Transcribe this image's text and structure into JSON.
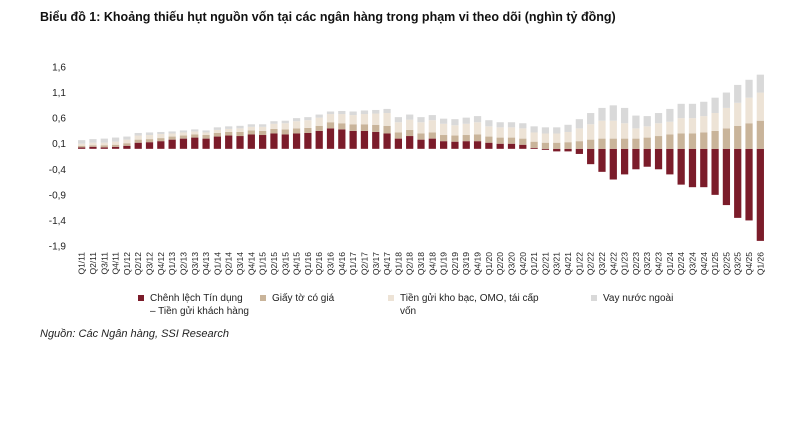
{
  "chart_data": {
    "type": "stacked-bar",
    "title": "Biểu đồ 1: Khoảng thiếu hụt nguồn vốn tại các ngân hàng trong phạm vi theo dõi (nghìn tỷ đồng)",
    "source": "Nguồn: Các Ngân hàng, SSI Research",
    "categories": [
      "Q1/11",
      "Q2/11",
      "Q3/11",
      "Q4/11",
      "Q1/12",
      "Q2/12",
      "Q3/12",
      "Q4/12",
      "Q1/13",
      "Q2/13",
      "Q3/13",
      "Q4/13",
      "Q1/14",
      "Q2/14",
      "Q3/14",
      "Q4/14",
      "Q1/15",
      "Q2/15",
      "Q3/15",
      "Q4/15",
      "Q1/16",
      "Q2/16",
      "Q3/16",
      "Q4/16",
      "Q1/17",
      "Q2/17",
      "Q3/17",
      "Q4/17",
      "Q1/18",
      "Q2/18",
      "Q3/18",
      "Q4/18",
      "Q1/19",
      "Q2/19",
      "Q3/19",
      "Q4/19",
      "Q1/20",
      "Q2/20",
      "Q3/20",
      "Q4/20",
      "Q1/21",
      "Q2/21",
      "Q3/21",
      "Q4/21",
      "Q1/22",
      "Q2/22",
      "Q3/22",
      "Q4/22",
      "Q1/23",
      "Q2/23",
      "Q3/23",
      "Q4/23",
      "Q1/24",
      "Q2/24",
      "Q3/24",
      "Q4/24",
      "Q1/25",
      "Q2/25",
      "Q3/25",
      "Q4/25",
      "Q1/26"
    ],
    "series": [
      {
        "name": "Chênh lệch Tín dụng – Tiền gửi khách hàng",
        "color": "#7b1c2a",
        "values": [
          0.03,
          0.04,
          0.03,
          0.04,
          0.06,
          0.12,
          0.13,
          0.15,
          0.18,
          0.2,
          0.22,
          0.2,
          0.24,
          0.26,
          0.25,
          0.28,
          0.27,
          0.3,
          0.28,
          0.3,
          0.31,
          0.35,
          0.4,
          0.38,
          0.35,
          0.35,
          0.33,
          0.3,
          0.2,
          0.25,
          0.18,
          0.2,
          0.15,
          0.14,
          0.15,
          0.15,
          0.12,
          0.1,
          0.1,
          0.08,
          0.02,
          -0.02,
          -0.05,
          -0.05,
          -0.1,
          -0.3,
          -0.45,
          -0.6,
          -0.5,
          -0.4,
          -0.35,
          -0.4,
          -0.5,
          -0.7,
          -0.75,
          -0.75,
          -0.9,
          -1.1,
          -1.35,
          -1.4,
          -1.8
        ]
      },
      {
        "name": "Giấy tờ có giá",
        "color": "#c9b49a",
        "values": [
          0.03,
          0.03,
          0.04,
          0.04,
          0.05,
          0.06,
          0.06,
          0.06,
          0.06,
          0.06,
          0.06,
          0.07,
          0.07,
          0.07,
          0.08,
          0.08,
          0.08,
          0.09,
          0.1,
          0.1,
          0.1,
          0.1,
          0.12,
          0.12,
          0.13,
          0.13,
          0.14,
          0.15,
          0.12,
          0.12,
          0.12,
          0.12,
          0.12,
          0.12,
          0.12,
          0.13,
          0.12,
          0.12,
          0.12,
          0.12,
          0.12,
          0.12,
          0.12,
          0.13,
          0.15,
          0.18,
          0.2,
          0.2,
          0.2,
          0.2,
          0.22,
          0.25,
          0.28,
          0.3,
          0.3,
          0.32,
          0.35,
          0.4,
          0.45,
          0.5,
          0.55
        ]
      },
      {
        "name": "Tiền gửi kho bạc, OMO, tái cấp vốn",
        "color": "#ede3d6",
        "values": [
          0.04,
          0.05,
          0.05,
          0.06,
          0.07,
          0.08,
          0.08,
          0.08,
          0.06,
          0.06,
          0.06,
          0.05,
          0.06,
          0.06,
          0.07,
          0.07,
          0.08,
          0.1,
          0.12,
          0.14,
          0.15,
          0.16,
          0.16,
          0.18,
          0.18,
          0.2,
          0.22,
          0.25,
          0.2,
          0.2,
          0.22,
          0.24,
          0.22,
          0.2,
          0.22,
          0.24,
          0.2,
          0.2,
          0.2,
          0.2,
          0.18,
          0.18,
          0.18,
          0.2,
          0.25,
          0.3,
          0.35,
          0.35,
          0.3,
          0.2,
          0.22,
          0.25,
          0.25,
          0.3,
          0.3,
          0.32,
          0.35,
          0.4,
          0.45,
          0.5,
          0.55
        ]
      },
      {
        "name": "Vay nước ngoài",
        "color": "#d9d9d9",
        "values": [
          0.07,
          0.07,
          0.08,
          0.08,
          0.06,
          0.05,
          0.05,
          0.04,
          0.04,
          0.04,
          0.04,
          0.04,
          0.05,
          0.05,
          0.05,
          0.05,
          0.05,
          0.05,
          0.05,
          0.06,
          0.06,
          0.06,
          0.05,
          0.06,
          0.07,
          0.07,
          0.07,
          0.08,
          0.1,
          0.1,
          0.1,
          0.1,
          0.1,
          0.12,
          0.12,
          0.12,
          0.12,
          0.1,
          0.1,
          0.1,
          0.12,
          0.12,
          0.12,
          0.14,
          0.18,
          0.22,
          0.25,
          0.3,
          0.3,
          0.25,
          0.2,
          0.2,
          0.25,
          0.28,
          0.28,
          0.28,
          0.3,
          0.3,
          0.35,
          0.35,
          0.35
        ]
      }
    ],
    "ylim": [
      -1.9,
      1.6
    ],
    "yticks": [
      {
        "value": 1.6,
        "label": "1,6"
      },
      {
        "value": 1.1,
        "label": "1,1"
      },
      {
        "value": 0.6,
        "label": "0,6"
      },
      {
        "value": 0.1,
        "label": "0,1"
      },
      {
        "value": -0.4,
        "label": "-0,4"
      },
      {
        "value": -0.9,
        "label": "-0,9"
      },
      {
        "value": -1.4,
        "label": "-1,4"
      },
      {
        "value": -1.9,
        "label": "-1,9"
      }
    ]
  }
}
